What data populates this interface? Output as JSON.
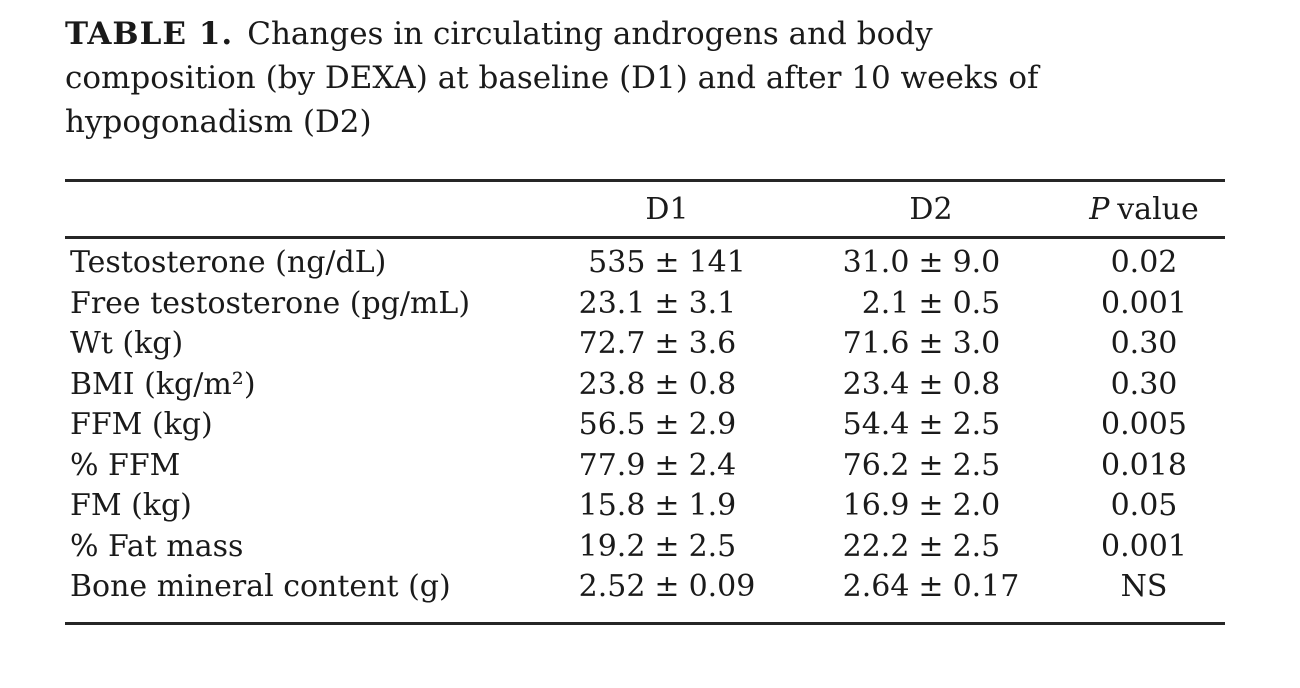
{
  "caption": {
    "label": "TABLE 1.",
    "line1": "Changes in circulating androgens and body",
    "line2": "composition (by DEXA) at baseline (D1) and after 10 weeks of",
    "line3": "hypogonadism (D2)"
  },
  "symbols": {
    "plus_minus": "±"
  },
  "table": {
    "columns": {
      "d1": "D1",
      "d2": "D2",
      "p_italic": "P",
      "p_rest": "value"
    },
    "rows": [
      {
        "label": "Testosterone (ng/dL)",
        "d1_mean": "535",
        "d1_sd": "141",
        "d2_mean": "31.0",
        "d2_sd": "9.0",
        "p": "0.02"
      },
      {
        "label": "Free testosterone (pg/mL)",
        "d1_mean": "23.1",
        "d1_sd": "3.1",
        "d2_mean": "2.1",
        "d2_sd": "0.5",
        "p": "0.001"
      },
      {
        "label": "Wt (kg)",
        "d1_mean": "72.7",
        "d1_sd": "3.6",
        "d2_mean": "71.6",
        "d2_sd": "3.0",
        "p": "0.30"
      },
      {
        "label": "BMI (kg/m²)",
        "d1_mean": "23.8",
        "d1_sd": "0.8",
        "d2_mean": "23.4",
        "d2_sd": "0.8",
        "p": "0.30"
      },
      {
        "label": "FFM (kg)",
        "d1_mean": "56.5",
        "d1_sd": "2.9",
        "d2_mean": "54.4",
        "d2_sd": "2.5",
        "p": "0.005"
      },
      {
        "label": "% FFM",
        "d1_mean": "77.9",
        "d1_sd": "2.4",
        "d2_mean": "76.2",
        "d2_sd": "2.5",
        "p": "0.018"
      },
      {
        "label": "FM (kg)",
        "d1_mean": "15.8",
        "d1_sd": "1.9",
        "d2_mean": "16.9",
        "d2_sd": "2.0",
        "p": "0.05"
      },
      {
        "label": "% Fat mass",
        "d1_mean": "19.2",
        "d1_sd": "2.5",
        "d2_mean": "22.2",
        "d2_sd": "2.5",
        "p": "0.001"
      },
      {
        "label": "Bone mineral content (g)",
        "d1_mean": "2.52",
        "d1_sd": "0.09",
        "d2_mean": "2.64",
        "d2_sd": "0.17",
        "p": "NS"
      }
    ]
  }
}
